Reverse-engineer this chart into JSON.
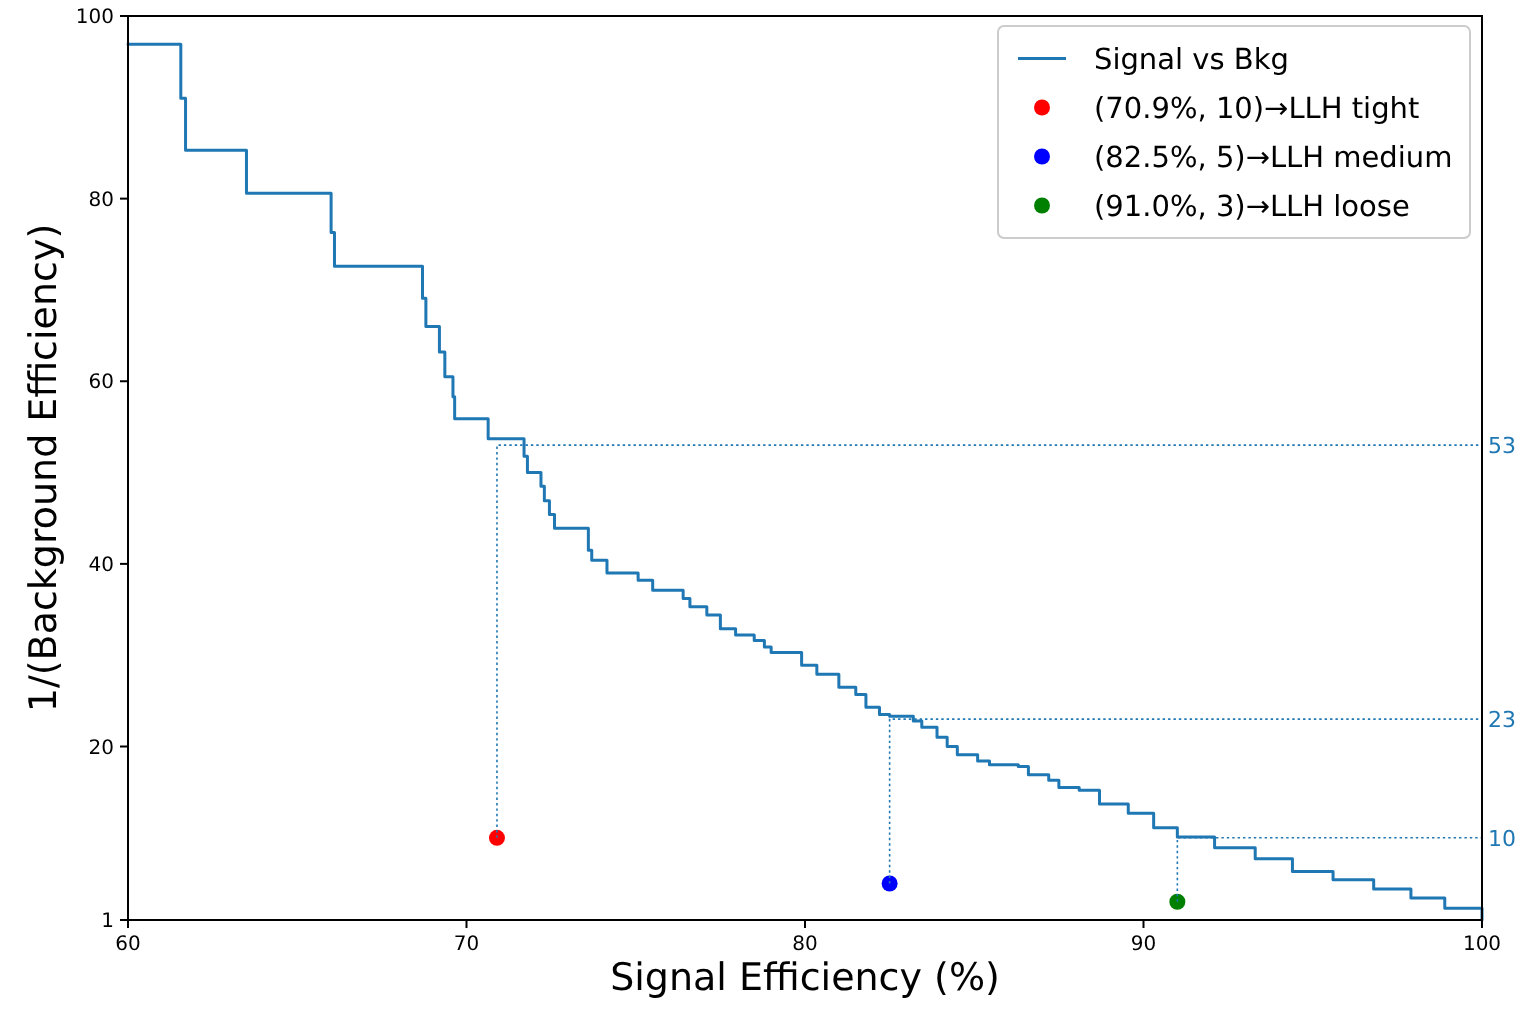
{
  "chart_data": {
    "type": "step",
    "xlabel": "Signal Efficiency (%)",
    "ylabel": "1/(Background Efficiency)",
    "xlim": [
      60,
      100
    ],
    "ylim": [
      1,
      100
    ],
    "xticks": [
      60,
      70,
      80,
      90,
      100
    ],
    "yticks": [
      1,
      20,
      40,
      60,
      80,
      100
    ],
    "grid": false,
    "legend": "top right",
    "series": [
      {
        "name": "Signal vs Bkg",
        "color": "#1f77b4",
        "x": [
          60,
          61.56,
          61.7,
          63.5,
          66.0,
          66.1,
          68.7,
          68.8,
          69.2,
          69.36,
          69.6,
          69.65,
          70.64,
          71.7,
          71.8,
          72.2,
          72.3,
          72.45,
          72.6,
          73.6,
          73.7,
          74.15,
          75.07,
          75.5,
          76.4,
          76.6,
          77.1,
          77.5,
          77.95,
          78.5,
          78.8,
          79.0,
          79.9,
          80.35,
          81.0,
          81.5,
          81.8,
          82.2,
          82.5,
          83.2,
          83.45,
          83.9,
          84.2,
          84.5,
          85.1,
          85.45,
          86.3,
          86.6,
          87.2,
          87.5,
          88.1,
          88.7,
          89.55,
          90.3,
          91.0,
          92.1,
          93.3,
          94.4,
          95.6,
          96.8,
          97.9,
          98.9,
          100
        ],
        "values": [
          96.9,
          91.0,
          85.3,
          80.6,
          76.3,
          72.6,
          69.1,
          66.0,
          63.2,
          60.5,
          58.3,
          55.9,
          53.7,
          51.8,
          50.0,
          48.5,
          46.9,
          45.4,
          43.9,
          41.5,
          40.4,
          39.0,
          38.2,
          37.1,
          36.2,
          35.3,
          34.4,
          32.9,
          32.2,
          31.6,
          30.9,
          30.3,
          28.9,
          27.9,
          26.5,
          25.7,
          24.3,
          23.5,
          23.3,
          22.8,
          22.1,
          21.0,
          20.0,
          19.1,
          18.4,
          18.0,
          17.8,
          16.9,
          16.3,
          15.5,
          15.2,
          13.7,
          12.7,
          11.1,
          10.1,
          8.9,
          7.7,
          6.3,
          5.4,
          4.4,
          3.4,
          2.3,
          1
        ]
      },
      {
        "name": "(70.9%, 10)→LLH tight",
        "type": "scatter",
        "marker": "circle",
        "color": "#ff0000",
        "x": [
          70.9
        ],
        "values": [
          10
        ]
      },
      {
        "name": "(82.5%, 5)→LLH medium",
        "type": "scatter",
        "marker": "circle",
        "color": "#0000ff",
        "x": [
          82.5
        ],
        "values": [
          5
        ]
      },
      {
        "name": "(91.0%, 3)→LLH loose",
        "type": "scatter",
        "marker": "circle",
        "color": "#008000",
        "x": [
          91.0
        ],
        "values": [
          3
        ]
      },
      {
        "type": "line",
        "line_style": "dotted",
        "color": "#1f77b4",
        "x": [
          70.9,
          70.9,
          100
        ],
        "values": [
          10,
          53,
          53
        ],
        "value_labels": [
          null,
          null,
          "53"
        ]
      },
      {
        "type": "line",
        "line_style": "dotted",
        "color": "#1f77b4",
        "x": [
          82.5,
          82.5,
          100
        ],
        "values": [
          5,
          23,
          23
        ],
        "value_labels": [
          null,
          null,
          "23"
        ]
      },
      {
        "type": "line",
        "line_style": "dotted",
        "color": "#1f77b4",
        "x": [
          91.0,
          91.0,
          100
        ],
        "values": [
          3,
          10,
          10
        ],
        "value_labels": [
          null,
          null,
          "10"
        ]
      }
    ]
  }
}
